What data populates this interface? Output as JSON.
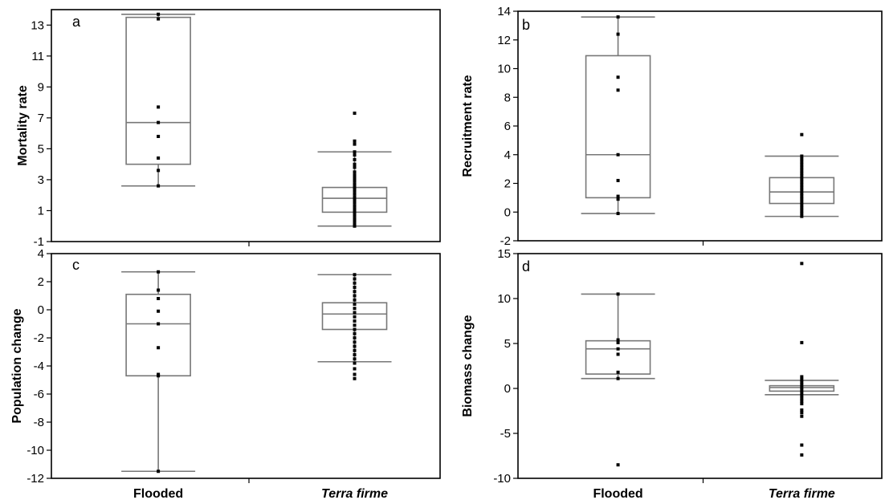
{
  "figure": {
    "categories": [
      "Flooded",
      "Terra firme"
    ],
    "category_italic": [
      false,
      true
    ]
  },
  "chart_data": [
    {
      "type": "box",
      "panel": "a",
      "ylabel": "Mortality rate",
      "ylim": [
        -1,
        14
      ],
      "yticks": [
        -1,
        1,
        3,
        5,
        7,
        9,
        11,
        13
      ],
      "categories": [
        "Flooded",
        "Terra firme"
      ],
      "boxes": [
        {
          "category": "Flooded",
          "whisker_low": 2.6,
          "q1": 4.0,
          "median": 6.7,
          "q3": 13.5,
          "whisker_high": 13.7,
          "points": [
            13.7,
            13.4,
            7.7,
            6.7,
            5.8,
            4.4,
            3.6,
            2.6
          ]
        },
        {
          "category": "Terra firme",
          "whisker_low": 0,
          "q1": 0.9,
          "median": 1.8,
          "q3": 2.5,
          "whisker_high": 4.8,
          "points": [
            7.3,
            5.5,
            5.3,
            4.8,
            4.6,
            4.3,
            4.0,
            3.8,
            3.5,
            3.3,
            3.1,
            2.9,
            2.7,
            2.5,
            2.3,
            2.1,
            1.9,
            1.7,
            1.5,
            1.3,
            1.1,
            0.9,
            0.7,
            0.5,
            0.3,
            0.1,
            0
          ]
        }
      ]
    },
    {
      "type": "box",
      "panel": "b",
      "ylabel": "Recruitment rate",
      "ylim": [
        -2,
        14
      ],
      "yticks": [
        -2,
        0,
        2,
        4,
        6,
        8,
        10,
        12,
        14
      ],
      "categories": [
        "Flooded",
        "Terra firme"
      ],
      "boxes": [
        {
          "category": "Flooded",
          "whisker_low": -0.1,
          "q1": 1.0,
          "median": 4.0,
          "q3": 10.9,
          "whisker_high": 13.6,
          "points": [
            13.6,
            12.4,
            9.4,
            8.5,
            4.0,
            2.2,
            1.1,
            0.9,
            -0.1
          ]
        },
        {
          "category": "Terra firme",
          "whisker_low": -0.3,
          "q1": 0.6,
          "median": 1.4,
          "q3": 2.4,
          "whisker_high": 3.9,
          "points": [
            5.4,
            3.9,
            3.7,
            3.5,
            3.3,
            3.1,
            2.9,
            2.7,
            2.5,
            2.3,
            2.1,
            1.9,
            1.7,
            1.5,
            1.3,
            1.1,
            0.9,
            0.7,
            0.5,
            0.3,
            0.1,
            -0.1,
            -0.3
          ]
        }
      ]
    },
    {
      "type": "box",
      "panel": "c",
      "ylabel": "Population change",
      "ylim": [
        -12,
        4
      ],
      "yticks": [
        -12,
        -10,
        -8,
        -6,
        -4,
        -2,
        0,
        2,
        4
      ],
      "categories": [
        "Flooded",
        "Terra firme"
      ],
      "boxes": [
        {
          "category": "Flooded",
          "whisker_low": -11.5,
          "q1": -4.7,
          "median": -1.0,
          "q3": 1.1,
          "whisker_high": 2.7,
          "points": [
            2.7,
            1.4,
            0.8,
            -0.1,
            -1.0,
            -2.7,
            -4.6,
            -4.7,
            -11.5
          ]
        },
        {
          "category": "Terra firme",
          "whisker_low": -3.7,
          "q1": -1.4,
          "median": -0.3,
          "q3": 0.5,
          "whisker_high": 2.5,
          "points": [
            2.5,
            2.2,
            1.9,
            1.6,
            1.3,
            1.0,
            0.7,
            0.4,
            0.1,
            -0.2,
            -0.5,
            -0.8,
            -1.1,
            -1.4,
            -1.7,
            -2.0,
            -2.3,
            -2.6,
            -2.9,
            -3.2,
            -3.5,
            -3.8,
            -4.2,
            -4.6,
            -4.9
          ]
        }
      ]
    },
    {
      "type": "box",
      "panel": "d",
      "ylabel": "Biomass change",
      "ylim": [
        -10,
        15
      ],
      "yticks": [
        -10,
        -5,
        0,
        5,
        10,
        15
      ],
      "categories": [
        "Flooded",
        "Terra firme"
      ],
      "boxes": [
        {
          "category": "Flooded",
          "whisker_low": 1.1,
          "q1": 1.6,
          "median": 4.4,
          "q3": 5.3,
          "whisker_high": 10.5,
          "points": [
            10.5,
            5.4,
            5.1,
            4.4,
            3.8,
            1.8,
            1.1,
            -8.5
          ]
        },
        {
          "category": "Terra firme",
          "whisker_low": -0.7,
          "q1": -0.3,
          "median": 0.1,
          "q3": 0.3,
          "whisker_high": 0.9,
          "points": [
            13.9,
            5.1,
            1.3,
            1.0,
            0.7,
            0.4,
            0.1,
            -0.2,
            -0.5,
            -0.8,
            -1.1,
            -1.4,
            -1.7,
            -2.4,
            -2.7,
            -3.1,
            -6.3,
            -7.4
          ]
        }
      ]
    }
  ]
}
